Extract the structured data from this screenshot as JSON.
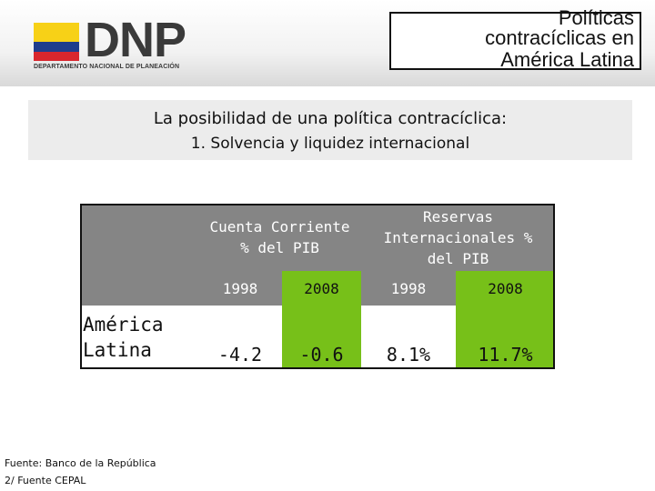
{
  "header": {
    "logo_text": "DNP",
    "logo_subtitle": "DEPARTAMENTO NACIONAL DE PLANEACIÓN",
    "title_lines": [
      "Políticas",
      "contracíclicas en",
      "América Latina"
    ]
  },
  "subtitle": {
    "main": "La posibilidad de una política contracíclica:",
    "secondary": "1. Solvencia y liquidez internacional"
  },
  "table": {
    "group1_header": "Cuenta Corriente % del PIB",
    "group2_header": "Reservas Internacionales % del PIB",
    "years": [
      "1998",
      "2008",
      "1998",
      "2008"
    ],
    "row_label": "América Latina",
    "values": [
      "-4.2",
      "-0.6",
      "8.1%",
      "11.7%"
    ]
  },
  "footnotes": [
    "Fuente: Banco de la República",
    "2/ Fuente CEPAL"
  ],
  "colors": {
    "gray": "#858585",
    "green": "#77c019"
  }
}
